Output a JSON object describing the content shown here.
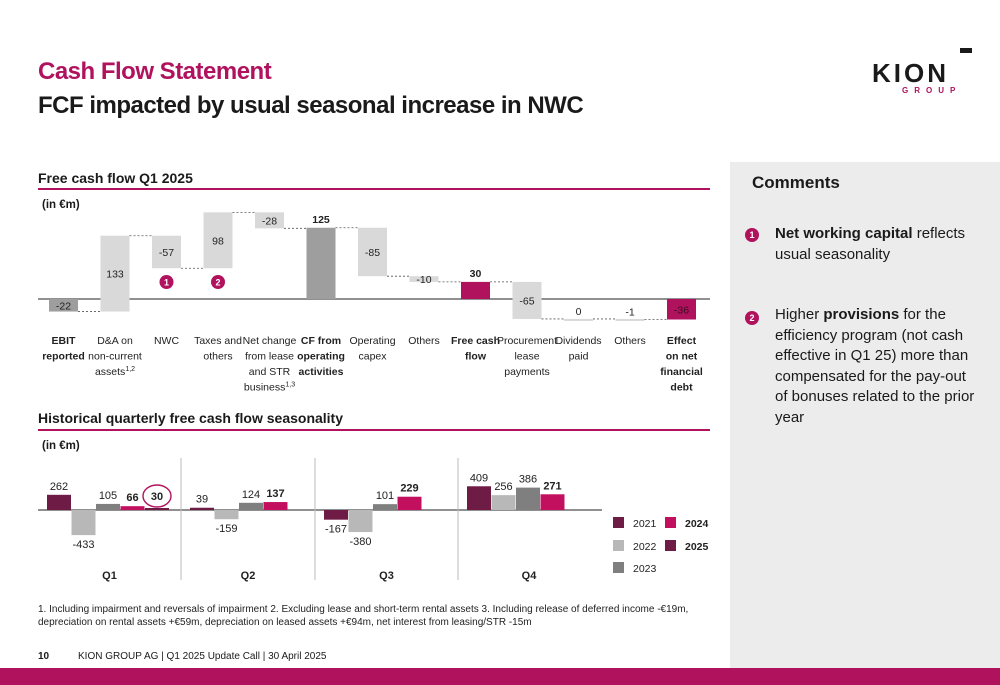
{
  "header": {
    "title": "Cash Flow Statement",
    "subtitle": "FCF impacted by usual seasonal increase in NWC"
  },
  "logo": {
    "word": "KION",
    "sub": "GROUP"
  },
  "colors": {
    "accent": "#b0125e",
    "dark_bar": "#9e9e9e",
    "light_bar": "#d9d9d9",
    "y2021": "#6e1c45",
    "y2022": "#b8b8b8",
    "y2023": "#7f7f7f",
    "y2024": "#c2105f",
    "y2025": "#6e1c45"
  },
  "chart_data": [
    {
      "type": "bar",
      "title": "Free cash flow Q1 2025",
      "unit_label": "(in €m)",
      "categories": [
        {
          "lines": [
            "EBIT",
            "reported"
          ],
          "bold": true
        },
        {
          "lines": [
            "D&A on",
            "non-current",
            "assets"
          ],
          "sup": "1,2",
          "bold": false
        },
        {
          "lines": [
            "NWC"
          ],
          "bold": false
        },
        {
          "lines": [
            "Taxes and",
            "others"
          ],
          "bold": false
        },
        {
          "lines": [
            "Net change",
            "from lease",
            "and STR",
            "business"
          ],
          "sup": "1,3",
          "bold": false
        },
        {
          "lines": [
            "CF from",
            "operating",
            "activities"
          ],
          "bold": true
        },
        {
          "lines": [
            "Operating",
            "capex"
          ],
          "bold": false
        },
        {
          "lines": [
            "Others"
          ],
          "bold": false
        },
        {
          "lines": [
            "Free cash",
            "flow"
          ],
          "bold": true
        },
        {
          "lines": [
            "Procurement",
            "lease",
            "payments"
          ],
          "bold": false
        },
        {
          "lines": [
            "Dividends",
            "paid"
          ],
          "bold": false
        },
        {
          "lines": [
            "Others"
          ],
          "bold": false
        },
        {
          "lines": [
            "Effect",
            "on net",
            "financial",
            "debt"
          ],
          "bold": true
        }
      ],
      "values": [
        -22,
        133,
        -57,
        98,
        -28,
        125,
        -85,
        -10,
        30,
        -65,
        0,
        -1,
        -36
      ],
      "value_labels": [
        "-22",
        "133",
        "-57",
        "98",
        "-28",
        "125",
        "-85",
        "-10",
        "30",
        "-65",
        "0",
        "-1",
        "-36"
      ],
      "kinds": [
        "total",
        "delta",
        "delta",
        "delta",
        "delta",
        "total",
        "delta",
        "delta",
        "total",
        "delta",
        "delta",
        "delta",
        "total"
      ],
      "badges": [
        {
          "index": 2,
          "label": "1"
        },
        {
          "index": 3,
          "label": "2"
        }
      ]
    },
    {
      "type": "bar",
      "title": "Historical quarterly free cash flow seasonality",
      "unit_label": "(in €m)",
      "categories": [
        "Q1",
        "Q2",
        "Q3",
        "Q4"
      ],
      "series": [
        {
          "name": "2021",
          "values": [
            262,
            39,
            -167,
            409
          ]
        },
        {
          "name": "2022",
          "values": [
            -433,
            -159,
            -380,
            256
          ]
        },
        {
          "name": "2023",
          "values": [
            105,
            124,
            101,
            386
          ]
        },
        {
          "name": "2024",
          "values": [
            66,
            137,
            229,
            271
          ]
        },
        {
          "name": "2025",
          "values": [
            30,
            null,
            null,
            null
          ]
        }
      ],
      "legend_order": [
        "2021",
        "2024",
        "2022",
        "2025",
        "2023"
      ],
      "legend_bold": [
        "2024",
        "2025"
      ],
      "legend_position": "right",
      "highlight": {
        "series": "2025",
        "category": "Q1"
      }
    }
  ],
  "comments": {
    "title": "Comments",
    "items": [
      {
        "badge": "1",
        "bold": "Net working capital",
        "rest": " reflects usual seasonality"
      },
      {
        "badge": "2",
        "pre": "Higher ",
        "bold": "provisions",
        "rest": " for the efficiency program (not cash effective in Q1 25) more than compensated for the pay-out of bonuses related to the prior year"
      }
    ]
  },
  "footnote": "1.    Including impairment and reversals of impairment     2.     Excluding lease and short-term rental assets     3.     Including release of deferred income -€19m, depreciation on rental assets +€59m, depreciation on leased assets +€94m, net interest from leasing/STR -15m",
  "footer": {
    "page": "10",
    "text": "KION GROUP AG | Q1 2025 Update Call | 30 April 2025"
  }
}
